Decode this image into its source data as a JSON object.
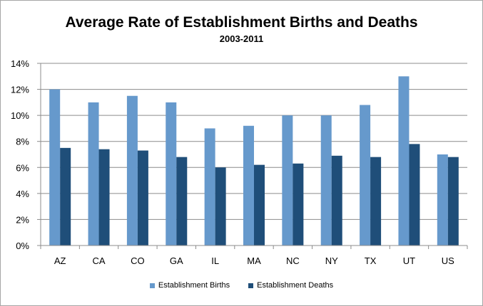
{
  "chart_data": {
    "type": "bar",
    "title": "Average Rate of Establishment Births and Deaths",
    "subtitle": "2003-2011",
    "categories": [
      "AZ",
      "CA",
      "CO",
      "GA",
      "IL",
      "MA",
      "NC",
      "NY",
      "TX",
      "UT",
      "US"
    ],
    "series": [
      {
        "name": "Establishment Births",
        "color": "#6699cc",
        "values": [
          12.0,
          11.0,
          11.5,
          11.0,
          9.0,
          9.2,
          10.0,
          10.0,
          10.8,
          13.0,
          7.0
        ]
      },
      {
        "name": "Establishment Deaths",
        "color": "#1f4e79",
        "values": [
          7.5,
          7.4,
          7.3,
          6.8,
          6.0,
          6.2,
          6.3,
          6.9,
          6.8,
          7.8,
          6.8
        ]
      }
    ],
    "y_ticks": [
      "0%",
      "2%",
      "4%",
      "6%",
      "8%",
      "10%",
      "12%",
      "14%"
    ],
    "y_tick_values": [
      0,
      2,
      4,
      6,
      8,
      10,
      12,
      14
    ],
    "ylim": [
      0,
      14
    ],
    "xlabel": "",
    "ylabel": "",
    "grid": true,
    "legend_position": "bottom"
  }
}
